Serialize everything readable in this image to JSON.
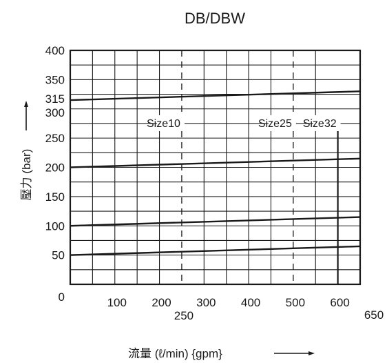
{
  "chart_data": {
    "type": "line",
    "title": "DB/DBW",
    "xlabel": "流量 (ℓ/min) {gpm}",
    "ylabel": "壓力 (bar)",
    "xlim": [
      0,
      650
    ],
    "ylim": [
      0,
      400
    ],
    "x_ticks": [
      {
        "value": 100,
        "label": "100",
        "row": 1
      },
      {
        "value": 200,
        "label": "200",
        "row": 1
      },
      {
        "value": 250,
        "label": "250",
        "row": 2
      },
      {
        "value": 300,
        "label": "300",
        "row": 1
      },
      {
        "value": 400,
        "label": "400",
        "row": 1
      },
      {
        "value": 500,
        "label": "500",
        "row": 1
      },
      {
        "value": 600,
        "label": "600",
        "row": 1
      },
      {
        "value": 650,
        "label": "650",
        "row": 3
      }
    ],
    "y_ticks": [
      {
        "value": 0,
        "label": "0"
      },
      {
        "value": 50,
        "label": "50"
      },
      {
        "value": 100,
        "label": "100"
      },
      {
        "value": 150,
        "label": "150"
      },
      {
        "value": 200,
        "label": "200"
      },
      {
        "value": 250,
        "label": "250"
      },
      {
        "value": 300,
        "label": "300"
      },
      {
        "value": 315,
        "label": "315"
      },
      {
        "value": 350,
        "label": "350"
      },
      {
        "value": 400,
        "label": "400"
      }
    ],
    "grid": {
      "x_step": 50,
      "y_step": 25
    },
    "series": [
      {
        "x": [
          0,
          650
        ],
        "y": [
          50,
          65
        ]
      },
      {
        "x": [
          0,
          650
        ],
        "y": [
          100,
          115
        ]
      },
      {
        "x": [
          0,
          650
        ],
        "y": [
          200,
          215
        ]
      },
      {
        "x": [
          0,
          650
        ],
        "y": [
          315,
          330
        ]
      }
    ],
    "size_markers": [
      {
        "label": "Size10",
        "x": 250,
        "style": "dashed"
      },
      {
        "label": "Size25",
        "x": 500,
        "style": "dashed"
      },
      {
        "label": "Size32",
        "x": 600,
        "style": "solid"
      }
    ],
    "grid_lines": true,
    "legend": "none",
    "colors": {
      "line": "#1a1a1a",
      "grid": "#1a1a1a"
    }
  }
}
